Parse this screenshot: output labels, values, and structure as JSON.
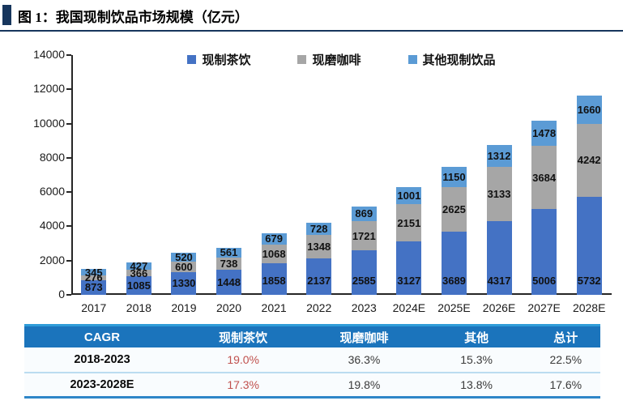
{
  "header": {
    "title": "图 1：我国现制饮品市场规模（亿元）"
  },
  "chart_data": {
    "type": "bar",
    "stacked": true,
    "title": "我国现制饮品市场规模（亿元）",
    "xlabel": "",
    "ylabel": "",
    "ylim": [
      0,
      14000
    ],
    "ytick_step": 2000,
    "yticks": [
      0,
      2000,
      4000,
      6000,
      8000,
      10000,
      12000,
      14000
    ],
    "grid": false,
    "legend_position": "top",
    "categories": [
      "2017",
      "2018",
      "2019",
      "2020",
      "2021",
      "2022",
      "2023",
      "2024E",
      "2025E",
      "2026E",
      "2027E",
      "2028E"
    ],
    "series": [
      {
        "name": "现制茶饮",
        "color": "#4472C4",
        "values": [
          873,
          1085,
          1330,
          1448,
          1858,
          2137,
          2585,
          3127,
          3689,
          4317,
          5006,
          5732
        ]
      },
      {
        "name": "现磨咖啡",
        "color": "#A6A6A6",
        "values": [
          276,
          366,
          600,
          738,
          1068,
          1348,
          1721,
          2151,
          2625,
          3133,
          3684,
          4242
        ]
      },
      {
        "name": "其他现制饮品",
        "color": "#5B9BD5",
        "values": [
          345,
          427,
          520,
          561,
          679,
          728,
          869,
          1001,
          1150,
          1312,
          1478,
          1660
        ]
      }
    ]
  },
  "table": {
    "header_bg": "#1B74BC",
    "accent_border": "#2E86C8",
    "highlight_color": "#C0504D",
    "headers": [
      "CAGR",
      "现制茶饮",
      "现磨咖啡",
      "其他",
      "总计"
    ],
    "rows": [
      {
        "cells": [
          "2018-2023",
          "19.0%",
          "36.3%",
          "15.3%",
          "22.5%"
        ]
      },
      {
        "cells": [
          "2023-2028E",
          "17.3%",
          "19.8%",
          "13.8%",
          "17.6%"
        ]
      }
    ]
  }
}
